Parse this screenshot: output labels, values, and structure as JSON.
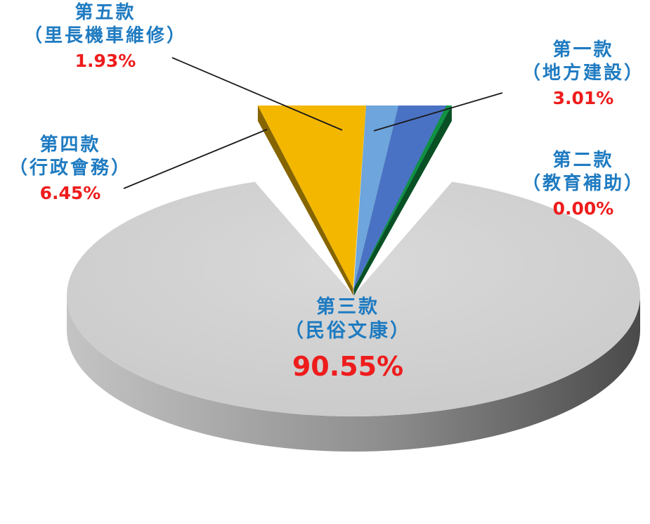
{
  "chart_data": {
    "type": "pie",
    "style": "3d-exploded",
    "slices": [
      {
        "key": "c1",
        "title": "第一款",
        "subtitle": "（地方建設）",
        "value": 3.01,
        "label": "3.01%",
        "color": "#4a72c4"
      },
      {
        "key": "c2",
        "title": "第二款",
        "subtitle": "（教育補助）",
        "value": 0.0,
        "label": "0.00%",
        "color": "#119144"
      },
      {
        "key": "c3",
        "title": "第三款",
        "subtitle": "（民俗文康）",
        "value": 90.55,
        "label": "90.55%",
        "color": "#d1d1d1"
      },
      {
        "key": "c4",
        "title": "第四款",
        "subtitle": "（行政會務）",
        "value": 6.45,
        "label": "6.45%",
        "color": "#f3b700"
      },
      {
        "key": "c5",
        "title": "第五款",
        "subtitle": "（里長機車維修）",
        "value": 1.93,
        "label": "1.93%",
        "color": "#6da5dc"
      }
    ],
    "colors": {
      "label_text": "#1f7bc1",
      "percent_text": "#ee1c1c",
      "leader_line": "#1a1a1a"
    }
  }
}
